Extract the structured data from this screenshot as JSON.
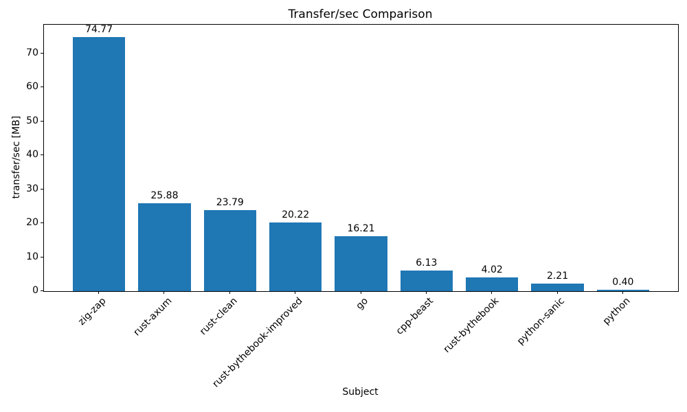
{
  "chart_data": {
    "type": "bar",
    "title": "Transfer/sec Comparison",
    "xlabel": "Subject",
    "ylabel": "transfer/sec [MB]",
    "categories": [
      "zig-zap",
      "rust-axum",
      "rust-clean",
      "rust-bythebook-improved",
      "go",
      "cpp-beast",
      "rust-bythebook",
      "python-sanic",
      "python"
    ],
    "values": [
      74.77,
      25.88,
      23.79,
      20.22,
      16.21,
      6.13,
      4.02,
      2.21,
      0.4
    ],
    "value_labels": [
      "74.77",
      "25.88",
      "23.79",
      "20.22",
      "16.21",
      "6.13",
      "4.02",
      "2.21",
      "0.40"
    ],
    "yticks": [
      0,
      10,
      20,
      30,
      40,
      50,
      60,
      70
    ],
    "ylim": [
      0,
      78.5
    ],
    "bar_color": "#1f77b4",
    "text_color": "#000000",
    "grid": false,
    "legend": null,
    "bar_width_fraction": 0.8,
    "x_tick_rotation_deg": 45
  }
}
